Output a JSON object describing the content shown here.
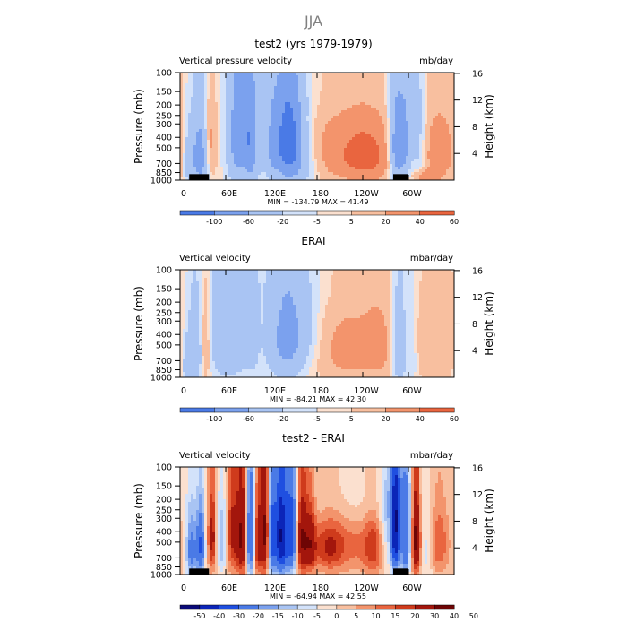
{
  "page_title": "JJA",
  "x_ticks": [
    "0",
    "60E",
    "120E",
    "180",
    "120W",
    "60W"
  ],
  "x_tick_lons": [
    0,
    60,
    120,
    180,
    240,
    300
  ],
  "lon_range": [
    0,
    360
  ],
  "p_ticks": [
    100,
    150,
    200,
    250,
    300,
    400,
    500,
    700,
    850,
    1000
  ],
  "h_ticks": [
    4,
    8,
    12,
    16
  ],
  "y_label_left": "Pressure (mb)",
  "y_label_right": "Height (km)",
  "chart_data": [
    {
      "type": "heatmap",
      "title": "test2 (yrs 1979-1979)",
      "left_label": "Vertical pressure velocity",
      "units": "mb/day",
      "stats_text": "MIN = -134.79   MAX =  41.49",
      "min": -134.79,
      "max": 41.49,
      "levels": [
        -100,
        -60,
        -20,
        -5,
        5,
        20,
        40,
        60
      ],
      "colorbar_labels": [
        "-100",
        "-60",
        "-20",
        "-5",
        "5",
        "20",
        "40",
        "60"
      ],
      "features": [
        {
          "lon": 12,
          "p": 650,
          "amp": -45,
          "wl": 5,
          "wp": 300
        },
        {
          "lon": 26,
          "p": 600,
          "amp": -85,
          "wl": 7,
          "wp": 350
        },
        {
          "lon": 40,
          "p": 450,
          "amp": 30,
          "wl": 6,
          "wp": 300
        },
        {
          "lon": 60,
          "p": 400,
          "amp": 10,
          "wl": 5,
          "wp": 350
        },
        {
          "lon": 78,
          "p": 400,
          "amp": -90,
          "wl": 12,
          "wp": 400
        },
        {
          "lon": 93,
          "p": 450,
          "amp": -55,
          "wl": 5,
          "wp": 400
        },
        {
          "lon": 104,
          "p": 400,
          "amp": -30,
          "wl": 5,
          "wp": 350
        },
        {
          "lon": 120,
          "p": 500,
          "amp": -30,
          "wl": 5,
          "wp": 350
        },
        {
          "lon": 142,
          "p": 400,
          "amp": -120,
          "wl": 15,
          "wp": 320
        },
        {
          "lon": 150,
          "p": 800,
          "amp": -40,
          "wl": 20,
          "wp": 300
        },
        {
          "lon": 205,
          "p": 550,
          "amp": 28,
          "wl": 40,
          "wp": 350
        },
        {
          "lon": 250,
          "p": 600,
          "amp": 35,
          "wl": 25,
          "wp": 300
        },
        {
          "lon": 285,
          "p": 500,
          "amp": -100,
          "wl": 7,
          "wp": 350
        },
        {
          "lon": 297,
          "p": 450,
          "amp": -55,
          "wl": 5,
          "wp": 350
        },
        {
          "lon": 312,
          "p": 400,
          "amp": -40,
          "wl": 7,
          "wp": 350
        },
        {
          "lon": 340,
          "p": 550,
          "amp": 30,
          "wl": 20,
          "wp": 350
        },
        {
          "lon": 190,
          "p": 150,
          "amp": -6,
          "wl": 80,
          "wp": 80
        },
        {
          "lon": 320,
          "p": 920,
          "amp": 30,
          "wl": 12,
          "wp": 80
        }
      ],
      "topo_lons": [
        [
          12,
          38
        ],
        [
          280,
          300
        ]
      ]
    },
    {
      "type": "heatmap",
      "title": "ERAI",
      "left_label": "Vertical velocity",
      "units": "mbar/day",
      "stats_text": "MIN = -84.21   MAX =  42.30",
      "min": -84.21,
      "max": 42.3,
      "levels": [
        -100,
        -60,
        -20,
        -5,
        5,
        20,
        40,
        60
      ],
      "colorbar_labels": [
        "-100",
        "-60",
        "-20",
        "-5",
        "5",
        "20",
        "40",
        "60"
      ],
      "features": [
        {
          "lon": 10,
          "p": 750,
          "amp": -40,
          "wl": 5,
          "wp": 300
        },
        {
          "lon": 20,
          "p": 600,
          "amp": -55,
          "wl": 6,
          "wp": 350
        },
        {
          "lon": 33,
          "p": 500,
          "amp": 32,
          "wl": 5,
          "wp": 350
        },
        {
          "lon": 65,
          "p": 400,
          "amp": -60,
          "wl": 18,
          "wp": 380
        },
        {
          "lon": 95,
          "p": 400,
          "amp": -20,
          "wl": 6,
          "wp": 400
        },
        {
          "lon": 140,
          "p": 450,
          "amp": -75,
          "wl": 18,
          "wp": 350
        },
        {
          "lon": 165,
          "p": 350,
          "amp": -15,
          "wl": 15,
          "wp": 200
        },
        {
          "lon": 220,
          "p": 550,
          "amp": 28,
          "wl": 30,
          "wp": 350
        },
        {
          "lon": 262,
          "p": 500,
          "amp": 20,
          "wl": 15,
          "wp": 350
        },
        {
          "lon": 288,
          "p": 550,
          "amp": -55,
          "wl": 7,
          "wp": 350
        },
        {
          "lon": 305,
          "p": 600,
          "amp": -20,
          "wl": 5,
          "wp": 350
        },
        {
          "lon": 335,
          "p": 500,
          "amp": 18,
          "wl": 25,
          "wp": 350
        },
        {
          "lon": 180,
          "p": 150,
          "amp": -5,
          "wl": 100,
          "wp": 80
        }
      ],
      "topo_lons": []
    },
    {
      "type": "heatmap",
      "title": "test2 - ERAI",
      "left_label": "Vertical velocity",
      "units": "mbar/day",
      "stats_text": "MIN = -64.94   MAX =  42.55",
      "min": -64.94,
      "max": 42.55,
      "levels": [
        -50,
        -40,
        -30,
        -20,
        -15,
        -10,
        -5,
        0,
        5,
        10,
        15,
        20,
        30,
        40,
        50
      ],
      "colorbar_labels": [
        "-50",
        "-40",
        "-30",
        "-20",
        "-15",
        "-10",
        "-5",
        "0",
        "5",
        "10",
        "15",
        "20",
        "30",
        "40",
        "50"
      ],
      "features": [
        {
          "lon": 15,
          "p": 600,
          "amp": -25,
          "wl": 5,
          "wp": 300
        },
        {
          "lon": 27,
          "p": 550,
          "amp": -30,
          "wl": 4,
          "wp": 300
        },
        {
          "lon": 42,
          "p": 450,
          "amp": 25,
          "wl": 4,
          "wp": 300
        },
        {
          "lon": 55,
          "p": 500,
          "amp": -15,
          "wl": 5,
          "wp": 300
        },
        {
          "lon": 68,
          "p": 400,
          "amp": 20,
          "wl": 5,
          "wp": 350
        },
        {
          "lon": 82,
          "p": 450,
          "amp": 35,
          "wl": 6,
          "wp": 380
        },
        {
          "lon": 92,
          "p": 450,
          "amp": -40,
          "wl": 5,
          "wp": 380
        },
        {
          "lon": 101,
          "p": 500,
          "amp": 25,
          "wl": 4,
          "wp": 350
        },
        {
          "lon": 112,
          "p": 400,
          "amp": 35,
          "wl": 5,
          "wp": 380
        },
        {
          "lon": 120,
          "p": 450,
          "amp": -35,
          "wl": 4,
          "wp": 380
        },
        {
          "lon": 133,
          "p": 450,
          "amp": -50,
          "wl": 6,
          "wp": 350
        },
        {
          "lon": 147,
          "p": 450,
          "amp": -35,
          "wl": 5,
          "wp": 350
        },
        {
          "lon": 160,
          "p": 450,
          "amp": 30,
          "wl": 6,
          "wp": 350
        },
        {
          "lon": 172,
          "p": 500,
          "amp": 20,
          "wl": 5,
          "wp": 300
        },
        {
          "lon": 195,
          "p": 550,
          "amp": 20,
          "wl": 15,
          "wp": 250
        },
        {
          "lon": 230,
          "p": 500,
          "amp": 10,
          "wl": 20,
          "wp": 300
        },
        {
          "lon": 255,
          "p": 550,
          "amp": 15,
          "wl": 10,
          "wp": 300
        },
        {
          "lon": 268,
          "p": 450,
          "amp": -10,
          "wl": 5,
          "wp": 300
        },
        {
          "lon": 283,
          "p": 400,
          "amp": -50,
          "wl": 5,
          "wp": 350
        },
        {
          "lon": 297,
          "p": 500,
          "amp": -30,
          "wl": 4,
          "wp": 350
        },
        {
          "lon": 310,
          "p": 450,
          "amp": 35,
          "wl": 4,
          "wp": 350
        },
        {
          "lon": 325,
          "p": 600,
          "amp": -10,
          "wl": 5,
          "wp": 300
        },
        {
          "lon": 340,
          "p": 500,
          "amp": 15,
          "wl": 10,
          "wp": 300
        },
        {
          "lon": 240,
          "p": 200,
          "amp": -8,
          "wl": 60,
          "wp": 120
        }
      ],
      "topo_lons": [
        [
          12,
          38
        ],
        [
          280,
          300
        ]
      ]
    }
  ]
}
